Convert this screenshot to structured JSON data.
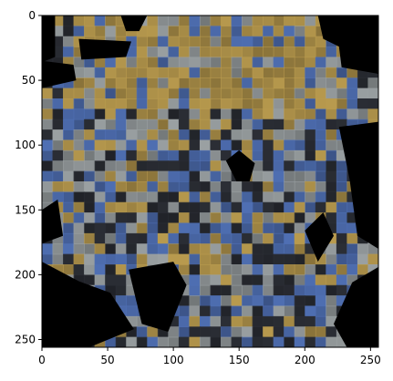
{
  "chart_data": {
    "type": "heatmap",
    "title": "",
    "xlabel": "",
    "ylabel": "",
    "image_size": [
      256,
      256
    ],
    "xlim": [
      0,
      256
    ],
    "ylim": [
      256,
      0
    ],
    "y_inverted": true,
    "grid": false,
    "legend": "none",
    "x_ticks": [
      {
        "value": 0,
        "label": "0"
      },
      {
        "value": 50,
        "label": "50"
      },
      {
        "value": 100,
        "label": "100"
      },
      {
        "value": 150,
        "label": "150"
      },
      {
        "value": 200,
        "label": "200"
      },
      {
        "value": 250,
        "label": "250"
      }
    ],
    "y_ticks": [
      {
        "value": 0,
        "label": "0"
      },
      {
        "value": 50,
        "label": "50"
      },
      {
        "value": 100,
        "label": "100"
      },
      {
        "value": 150,
        "label": "150"
      },
      {
        "value": 200,
        "label": "200"
      },
      {
        "value": 250,
        "label": "250"
      }
    ],
    "image_content": "masked microscopy-like texture; blue, gray and ochre speckles with black masked regions",
    "colors": {
      "background": "#000000",
      "ochre": "#b89a4e",
      "blue": "#4f6fb3",
      "gray": "#9aa0a2",
      "dark": "#2b2e35"
    }
  }
}
